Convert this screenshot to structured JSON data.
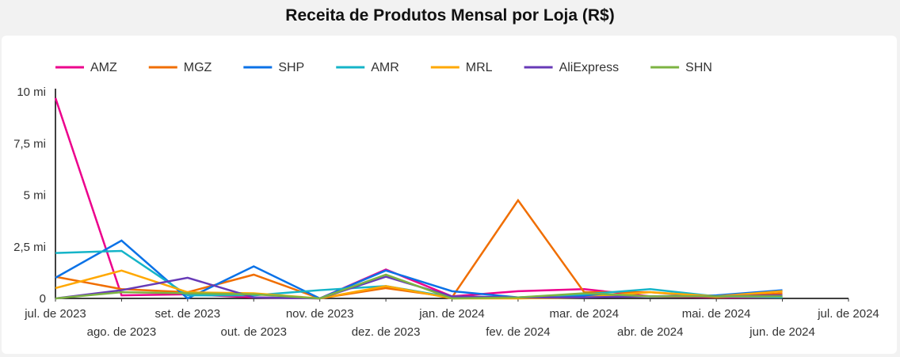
{
  "chart_data": {
    "type": "line",
    "title": "Receita de Produtos Mensal por Loja (R$)",
    "xlabel": "",
    "ylabel": "",
    "x_ticks": [
      "jul. de 2023",
      "ago. de 2023",
      "set. de 2023",
      "out. de 2023",
      "nov. de 2023",
      "dez. de 2023",
      "jan. de 2024",
      "fev. de 2024",
      "mar. de 2024",
      "abr. de 2024",
      "mai. de 2024",
      "jun. de 2024",
      "jul. de 2024"
    ],
    "y_ticks": [
      {
        "value": 0,
        "label": "0"
      },
      {
        "value": 2.5,
        "label": "2,5 mi"
      },
      {
        "value": 5,
        "label": "5 mi"
      },
      {
        "value": 7.5,
        "label": "7,5 mi"
      },
      {
        "value": 10,
        "label": "10 mi"
      }
    ],
    "ylim": [
      0,
      10
    ],
    "y_unit": "millions R$",
    "grid": false,
    "legend_position": "top-left",
    "categories": [
      "jul. de 2023",
      "ago. de 2023",
      "set. de 2023",
      "out. de 2023",
      "nov. de 2023",
      "dez. de 2023",
      "jan. de 2024",
      "fev. de 2024",
      "mar. de 2024",
      "abr. de 2024",
      "mai. de 2024",
      "jun. de 2024"
    ],
    "series": [
      {
        "name": "AMZ",
        "color": "#ec008c",
        "values": [
          9.7,
          0.15,
          0.2,
          0.05,
          0,
          1.4,
          0.1,
          0.35,
          0.45,
          0.1,
          0.05,
          0.05
        ]
      },
      {
        "name": "MGZ",
        "color": "#f06e00",
        "values": [
          1.05,
          0.45,
          0.3,
          1.15,
          0,
          0.5,
          0.05,
          4.75,
          0.3,
          0.3,
          0.05,
          0.25
        ]
      },
      {
        "name": "SHP",
        "color": "#0b72e7",
        "values": [
          1.0,
          2.8,
          0,
          1.55,
          0,
          1.35,
          0.35,
          0.05,
          0.15,
          0.1,
          0.15,
          0.4
        ]
      },
      {
        "name": "AMR",
        "color": "#15b4c8",
        "values": [
          2.2,
          2.3,
          0.15,
          0.15,
          0.4,
          0.6,
          0.05,
          0.05,
          0.2,
          0.45,
          0.1,
          0.05
        ]
      },
      {
        "name": "MRL",
        "color": "#ffa800",
        "values": [
          0.5,
          1.35,
          0.3,
          0.25,
          0,
          0.6,
          0,
          0,
          0.05,
          0.3,
          0.1,
          0.35
        ]
      },
      {
        "name": "AliExpress",
        "color": "#673ab7",
        "values": [
          0,
          0.4,
          1.0,
          0.05,
          0,
          1.05,
          0.1,
          0.05,
          0.05,
          0.1,
          0.1,
          0.15
        ]
      },
      {
        "name": "SHN",
        "color": "#7cb342",
        "values": [
          0,
          0.3,
          0.25,
          0.2,
          0,
          1.15,
          0,
          0.05,
          0.25,
          0.1,
          0.1,
          0.1
        ]
      }
    ]
  }
}
